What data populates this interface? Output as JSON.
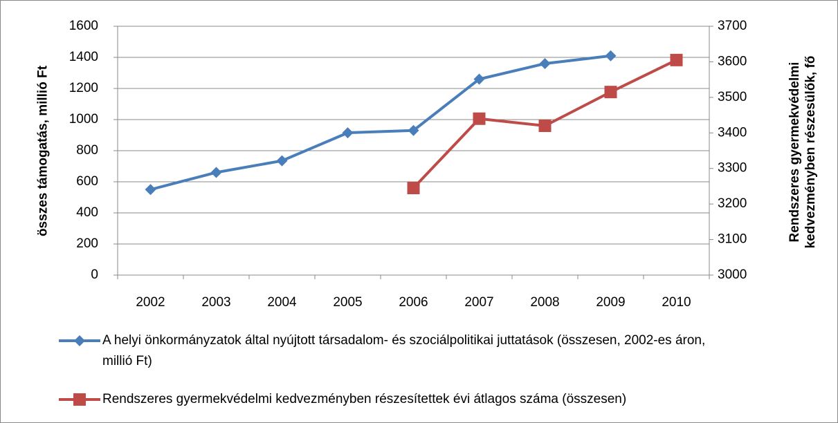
{
  "chart_data": {
    "type": "line",
    "categories": [
      "2002",
      "2003",
      "2004",
      "2005",
      "2006",
      "2007",
      "2008",
      "2009",
      "2010"
    ],
    "series": [
      {
        "name": "A helyi önkormányzatok által nyújtott társadalom- és szociálpolitikai juttatások (összesen, 2002-es áron, millió Ft)",
        "color": "#4a7ebb",
        "marker": "diamond",
        "axis": "y",
        "values": [
          550,
          660,
          735,
          915,
          930,
          1260,
          1360,
          1410,
          null
        ]
      },
      {
        "name": "Rendszeres gyermekvédelmi kedvezményben részesítettek évi átlagos száma (összesen)",
        "color": "#be4b48",
        "marker": "square",
        "axis": "y2",
        "values": [
          null,
          null,
          null,
          null,
          3245,
          3440,
          3420,
          3515,
          3605
        ]
      }
    ],
    "ylabel": "összes támogatás, millió Ft",
    "y2label": "Rendszeres gyermekvédelmi kedvezményben részesülők, fő",
    "ylim": [
      0,
      1600
    ],
    "yticks": [
      0,
      200,
      400,
      600,
      800,
      1000,
      1200,
      1400,
      1600
    ],
    "y2lim": [
      3000,
      3700
    ],
    "y2ticks": [
      3000,
      3100,
      3200,
      3300,
      3400,
      3500,
      3600,
      3700
    ],
    "grid": true,
    "legend": "bottom"
  }
}
